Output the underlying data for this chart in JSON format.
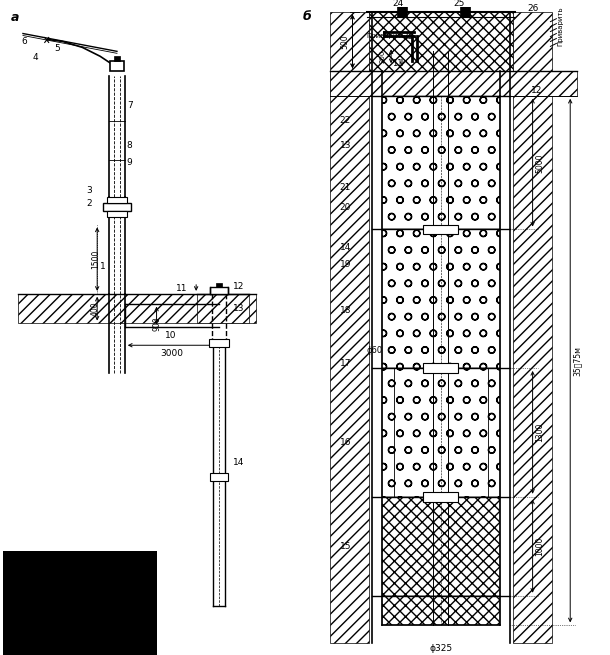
{
  "fig_width": 6.1,
  "fig_height": 6.55,
  "bg_color": "#ffffff",
  "lc": "#000000",
  "label_a": "а",
  "label_b": "б",
  "privarit": "Приварить"
}
